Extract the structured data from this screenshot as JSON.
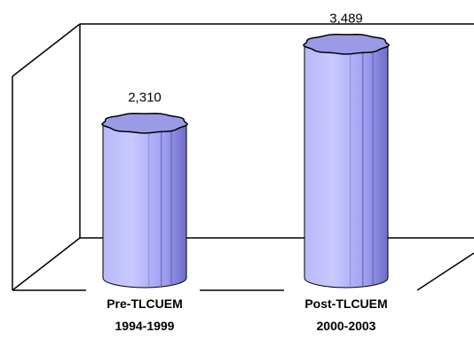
{
  "chart_data": {
    "type": "bar",
    "style": "3d-cylinder",
    "categories": [
      {
        "line1": "Pre-TLCUEM",
        "line2": "1994-1999"
      },
      {
        "line1": "Post-TLCUEM",
        "line2": "2000-2003"
      }
    ],
    "values": [
      2310,
      3489
    ],
    "value_labels": [
      "2,310",
      "3,489"
    ],
    "title": "",
    "xlabel": "",
    "ylabel": "",
    "ylim": [
      0,
      3700
    ],
    "grid": false,
    "legend": "none",
    "colors": {
      "bar_light": "#c7c7ff",
      "bar_mid": "#9999ee",
      "bar_dark": "#6666bb",
      "top_fill": "#9a9ae6",
      "outline": "#000000",
      "axis": "#000000"
    }
  }
}
